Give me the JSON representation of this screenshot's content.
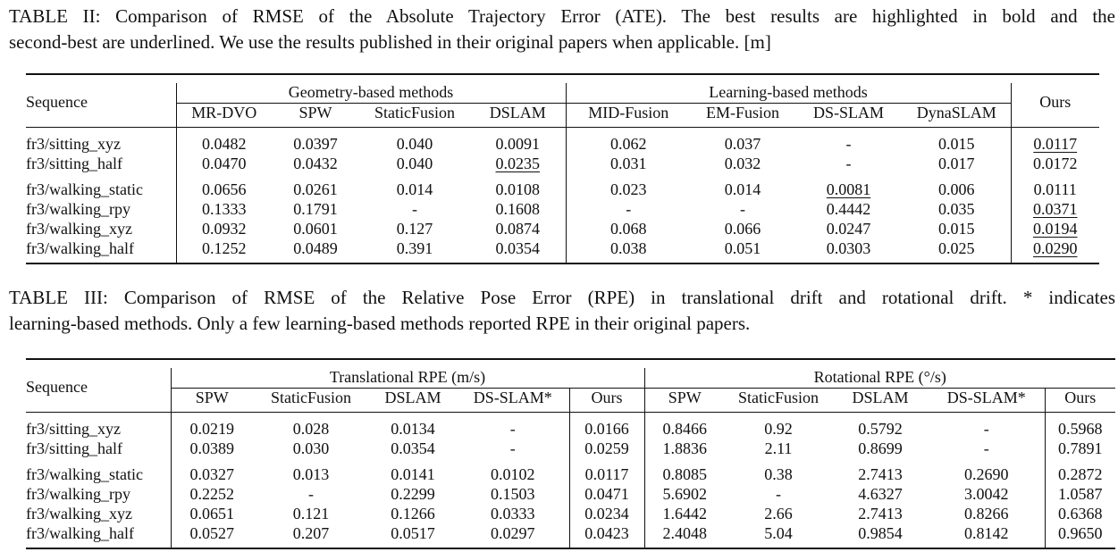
{
  "table2": {
    "caption_line1": "TABLE II: Comparison of RMSE of the Absolute Trajectory Error (ATE). The best results are highlighted in bold and the",
    "caption_line2": "second-best are underlined. We use the results published in their original papers when applicable. [m]",
    "sequence_header": "Sequence",
    "group_geometry": "Geometry-based methods",
    "group_learning": "Learning-based methods",
    "ours_header": "Ours",
    "methods": [
      "MR-DVO",
      "SPW",
      "StaticFusion",
      "DSLAM",
      "MID-Fusion",
      "EM-Fusion",
      "DS-SLAM",
      "DynaSLAM"
    ],
    "rows": [
      {
        "seq": "fr3/sitting_xyz",
        "vals": [
          "0.0482",
          "0.0397",
          "0.040",
          "0.0091",
          "0.062",
          "0.037",
          "-",
          "0.015",
          "0.0117"
        ]
      },
      {
        "seq": "fr3/sitting_half",
        "vals": [
          "0.0470",
          "0.0432",
          "0.040",
          "0.0235",
          "0.031",
          "0.032",
          "-",
          "0.017",
          "0.0172"
        ]
      },
      {
        "seq": "fr3/walking_static",
        "vals": [
          "0.0656",
          "0.0261",
          "0.014",
          "0.0108",
          "0.023",
          "0.014",
          "0.0081",
          "0.006",
          "0.0111"
        ]
      },
      {
        "seq": "fr3/walking_rpy",
        "vals": [
          "0.1333",
          "0.1791",
          "-",
          "0.1608",
          "-",
          "-",
          "0.4442",
          "0.035",
          "0.0371"
        ]
      },
      {
        "seq": "fr3/walking_xyz",
        "vals": [
          "0.0932",
          "0.0601",
          "0.127",
          "0.0874",
          "0.068",
          "0.066",
          "0.0247",
          "0.015",
          "0.0194"
        ]
      },
      {
        "seq": "fr3/walking_half",
        "vals": [
          "0.1252",
          "0.0489",
          "0.391",
          "0.0354",
          "0.038",
          "0.051",
          "0.0303",
          "0.025",
          "0.0290"
        ]
      }
    ]
  },
  "table3": {
    "caption_line1": "TABLE III: Comparison of RMSE of the Relative Pose Error (RPE) in translational drift and rotational drift. * indicates",
    "caption_line2": "learning-based methods. Only a few learning-based methods reported RPE in their original papers.",
    "sequence_header": "Sequence",
    "group_trans": "Translational RPE (m/s)",
    "group_rot": "Rotational RPE (°/s)",
    "methods_trans": [
      "SPW",
      "StaticFusion",
      "DSLAM",
      "DS-SLAM*",
      "Ours"
    ],
    "methods_rot": [
      "SPW",
      "StaticFusion",
      "DSLAM",
      "DS-SLAM*",
      "Ours"
    ],
    "rows": [
      {
        "seq": "fr3/sitting_xyz",
        "vals": [
          "0.0219",
          "0.028",
          "0.0134",
          "-",
          "0.0166",
          "0.8466",
          "0.92",
          "0.5792",
          "-",
          "0.5968"
        ]
      },
      {
        "seq": "fr3/sitting_half",
        "vals": [
          "0.0389",
          "0.030",
          "0.0354",
          "-",
          "0.0259",
          "1.8836",
          "2.11",
          "0.8699",
          "-",
          "0.7891"
        ]
      },
      {
        "seq": "fr3/walking_static",
        "vals": [
          "0.0327",
          "0.013",
          "0.0141",
          "0.0102",
          "0.0117",
          "0.8085",
          "0.38",
          "2.7413",
          "0.2690",
          "0.2872"
        ]
      },
      {
        "seq": "fr3/walking_rpy",
        "vals": [
          "0.2252",
          "-",
          "0.2299",
          "0.1503",
          "0.0471",
          "5.6902",
          "-",
          "4.6327",
          "3.0042",
          "1.0587"
        ]
      },
      {
        "seq": "fr3/walking_xyz",
        "vals": [
          "0.0651",
          "0.121",
          "0.1266",
          "0.0333",
          "0.0234",
          "1.6442",
          "2.66",
          "2.7413",
          "0.8266",
          "0.6368"
        ]
      },
      {
        "seq": "fr3/walking_half",
        "vals": [
          "0.0527",
          "0.207",
          "0.0517",
          "0.0297",
          "0.0423",
          "2.4048",
          "5.04",
          "0.9854",
          "0.8142",
          "0.9650"
        ]
      }
    ]
  }
}
